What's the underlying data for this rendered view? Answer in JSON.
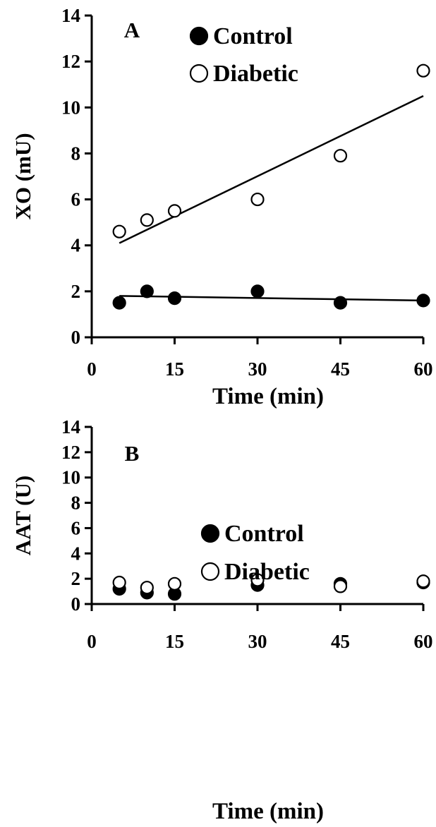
{
  "chart_data": [
    {
      "type": "scatter",
      "panel_label": "A",
      "xlabel": "Time (min)",
      "ylabel": "XO (mU)",
      "xlim": [
        0,
        60
      ],
      "ylim": [
        0,
        14
      ],
      "x_ticks": [
        "0",
        "15",
        "30",
        "45",
        "60"
      ],
      "y_ticks": [
        "0",
        "2",
        "4",
        "6",
        "8",
        "10",
        "12",
        "14"
      ],
      "legend": {
        "placement": "top-center",
        "entries": [
          "Control",
          "Diabetic"
        ]
      },
      "grid": false,
      "series": [
        {
          "name": "Control",
          "marker": "filled-circle",
          "x": [
            5,
            10,
            15,
            30,
            45,
            60
          ],
          "y": [
            1.5,
            2.0,
            1.7,
            2.0,
            1.5,
            1.6
          ],
          "trendline": {
            "x": [
              5,
              60
            ],
            "y": [
              1.8,
              1.6
            ]
          }
        },
        {
          "name": "Diabetic",
          "marker": "open-circle",
          "x": [
            5,
            10,
            15,
            30,
            45,
            60
          ],
          "y": [
            4.6,
            5.1,
            5.5,
            6.0,
            7.9,
            11.6
          ],
          "trendline": {
            "x": [
              5,
              60
            ],
            "y": [
              4.1,
              10.5
            ]
          }
        }
      ]
    },
    {
      "type": "scatter",
      "panel_label": "B",
      "xlabel": "Time (min)",
      "ylabel": "AAT (U)",
      "xlim": [
        0,
        60
      ],
      "ylim": [
        0,
        14
      ],
      "x_ticks": [
        "0",
        "15",
        "30",
        "45",
        "60"
      ],
      "y_ticks": [
        "0",
        "2",
        "4",
        "6",
        "8",
        "10",
        "12",
        "14"
      ],
      "legend": {
        "placement": "center",
        "entries": [
          "Control",
          "Diabetic"
        ]
      },
      "grid": false,
      "series": [
        {
          "name": "Control",
          "marker": "filled-circle",
          "x": [
            5,
            10,
            15,
            30,
            45,
            60
          ],
          "y": [
            1.2,
            0.9,
            0.8,
            1.5,
            1.6,
            1.7
          ]
        },
        {
          "name": "Diabetic",
          "marker": "open-circle",
          "x": [
            5,
            10,
            15,
            30,
            45,
            60
          ],
          "y": [
            1.7,
            1.3,
            1.6,
            1.9,
            1.4,
            1.8
          ]
        }
      ]
    }
  ]
}
